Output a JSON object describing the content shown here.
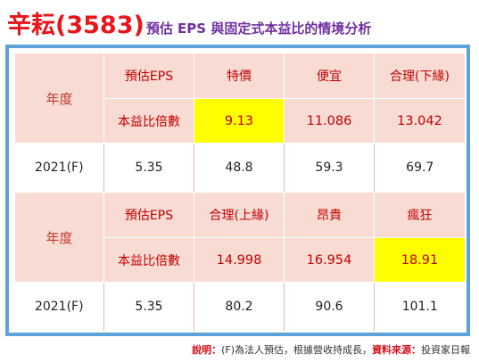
{
  "title": {
    "main": "辛耘(3583)",
    "sub": "預估 EPS 與固定式本益比的情境分析"
  },
  "table1": {
    "year_label": "年度",
    "header": [
      "預估EPS",
      "特價",
      "便宜",
      "合理(下緣)"
    ],
    "pe_label": "本益比倍數",
    "pe_values": [
      "9.13",
      "11.086",
      "13.042"
    ],
    "data_row": [
      "2021(F)",
      "5.35",
      "48.8",
      "59.3",
      "69.7"
    ]
  },
  "table2": {
    "year_label": "年度",
    "header": [
      "預估EPS",
      "合理(上緣)",
      "昂貴",
      "瘋狂"
    ],
    "pe_label": "本益比倍數",
    "pe_values": [
      "14.998",
      "16.954",
      "18.91"
    ],
    "data_row": [
      "2021(F)",
      "5.35",
      "80.2",
      "90.6",
      "101.1"
    ]
  },
  "footer": {
    "note_label": "說明：",
    "note_text": "(F)為法人預估，根據營收持成長，",
    "source_label": "資料來源：",
    "source_text": "投資家日報"
  },
  "colors": {
    "title_red": "#e8151b",
    "subtitle_purple": "#7030a0",
    "frame_blue": "#5da3d9",
    "pink_fill": "#f8dcd4",
    "highlight_yellow": "#ffff00"
  }
}
